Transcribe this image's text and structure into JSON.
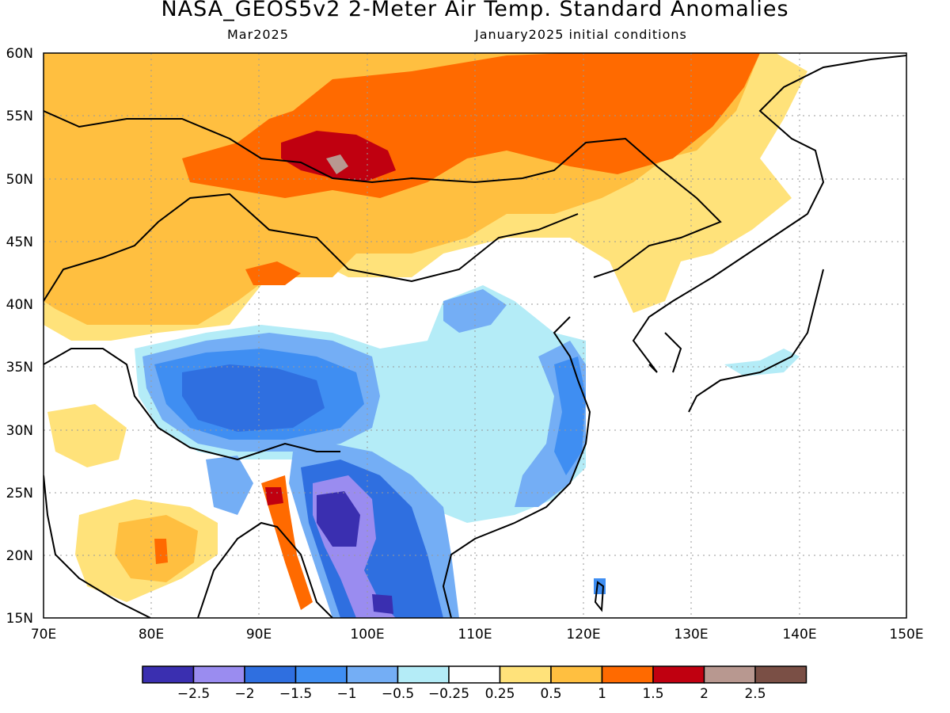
{
  "title": "NASA_GEOS5v2 2-Meter Air Temp. Standard Anomalies",
  "subtitle_left": "Mar2025",
  "subtitle_right": "January2025 initial conditions",
  "map": {
    "lon_ticks": [
      "70E",
      "80E",
      "90E",
      "100E",
      "110E",
      "120E",
      "130E",
      "140E",
      "150E"
    ],
    "lat_ticks": [
      "60N",
      "55N",
      "50N",
      "45N",
      "40N",
      "35N",
      "30N",
      "25N",
      "20N",
      "15N"
    ],
    "lon_range": [
      70,
      150
    ],
    "lat_range": [
      15,
      60
    ],
    "grid": true
  },
  "colorbar": {
    "labels": [
      "-2.5",
      "-2",
      "-1.5",
      "-1",
      "-0.5",
      "-0.25",
      "0.25",
      "0.5",
      "1",
      "1.5",
      "2",
      "2.5"
    ],
    "colors": [
      "#3a2fb0",
      "#9a8cf0",
      "#2f6fe0",
      "#3f8ef2",
      "#74aef5",
      "#b4ecf7",
      "#ffffff",
      "#ffe27a",
      "#ffbf40",
      "#ff6a00",
      "#c00010",
      "#b89890",
      "#7a4f45"
    ]
  }
}
